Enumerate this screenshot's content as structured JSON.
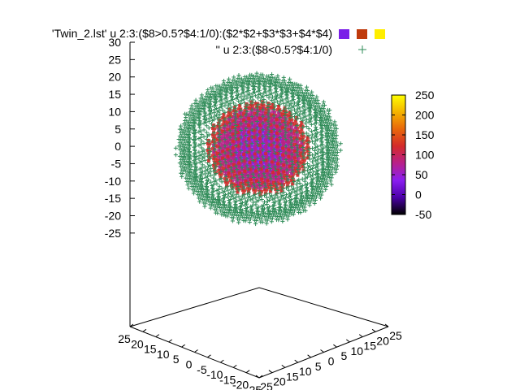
{
  "chart_data": {
    "type": "scatter",
    "dimensions": "3d",
    "title": "",
    "series": [
      {
        "name": "'Twin_2.lst' u 2:3:($8>0.5?$4:1/0):($2*$2+$3*$3+$4*$4)",
        "marker": "points",
        "colored_by_palette": true,
        "legend_swatches": [
          "#7a1ee8",
          "#bf3a0c",
          "#ffee00"
        ]
      },
      {
        "name": "'' u 2:3:($8<0.5?$4:1/0)",
        "marker": "+",
        "color": "#2e8b57"
      }
    ],
    "x_axis": {
      "range": [
        -25,
        25
      ],
      "ticks": [
        "25",
        "20",
        "15",
        "10",
        "5",
        "0",
        "-5",
        "-10",
        "-15",
        "-20",
        "-25"
      ]
    },
    "y_axis": {
      "range": [
        -25,
        25
      ],
      "ticks": [
        "-25",
        "-20",
        "-15",
        "-10",
        "-5",
        "0",
        "5",
        "10",
        "15",
        "20",
        "25"
      ]
    },
    "z_axis": {
      "range": [
        -25,
        30
      ],
      "ticks": [
        "30",
        "25",
        "20",
        "15",
        "10",
        "5",
        "0",
        "-5",
        "-10",
        "-15",
        "-20",
        "-25"
      ]
    },
    "colorbar": {
      "range": [
        -50,
        250
      ],
      "ticks": [
        "250",
        "200",
        "150",
        "100",
        "50",
        "0",
        "-50"
      ],
      "palette": [
        "#000000",
        "#4b00a8",
        "#8a1ef0",
        "#b8208a",
        "#d42a2a",
        "#e8660a",
        "#f4b300",
        "#ffff00"
      ]
    },
    "point_cloud": {
      "shape": "sphere",
      "outer_radius": 16,
      "inner_radius": 10,
      "grid_step": 1.5
    },
    "grid": false,
    "legend_position": "top"
  }
}
